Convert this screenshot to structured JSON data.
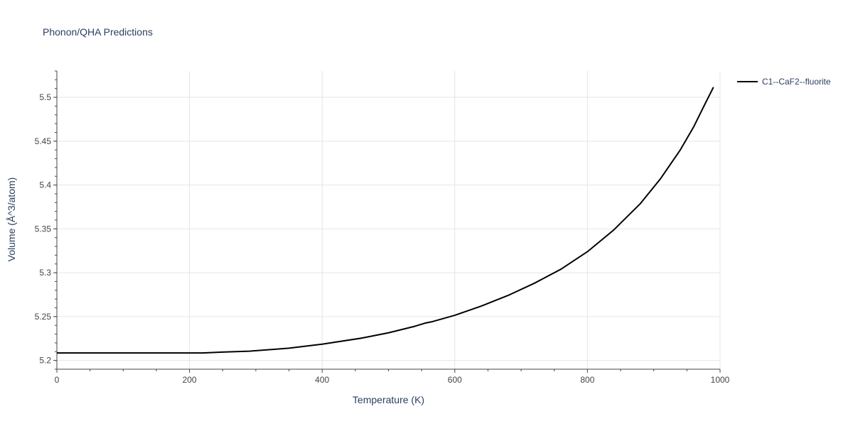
{
  "chart_data": {
    "type": "line",
    "title": "Phonon/QHA Predictions",
    "xlabel": "Temperature (K)",
    "ylabel": "Volume (Å^3/atom)",
    "xlim": [
      0,
      1000
    ],
    "ylim": [
      5.19,
      5.53
    ],
    "x_ticks": [
      0,
      200,
      400,
      600,
      800,
      1000
    ],
    "x_tick_labels": [
      "0",
      "200",
      "400",
      "600",
      "800",
      "1000"
    ],
    "y_ticks": [
      5.2,
      5.25,
      5.3,
      5.35,
      5.4,
      5.45,
      5.5
    ],
    "y_tick_labels": [
      "5.2",
      "5.25",
      "5.3",
      "5.35",
      "5.4",
      "5.45",
      "5.5"
    ],
    "grid": true,
    "legend_position": "top-right",
    "series": [
      {
        "name": "C1--CaF2--fluorite",
        "color": "#000000",
        "x": [
          0,
          100,
          200,
          220,
          250,
          290,
          350,
          400,
          460,
          500,
          540,
          555,
          565,
          600,
          640,
          680,
          720,
          760,
          800,
          840,
          880,
          910,
          940,
          960,
          975,
          990
        ],
        "y": [
          5.2085,
          5.2085,
          5.2085,
          5.2085,
          5.2095,
          5.2105,
          5.214,
          5.2185,
          5.2255,
          5.2315,
          5.239,
          5.2425,
          5.244,
          5.2515,
          5.262,
          5.274,
          5.288,
          5.304,
          5.324,
          5.349,
          5.379,
          5.407,
          5.44,
          5.466,
          5.489,
          5.5115
        ]
      }
    ]
  }
}
